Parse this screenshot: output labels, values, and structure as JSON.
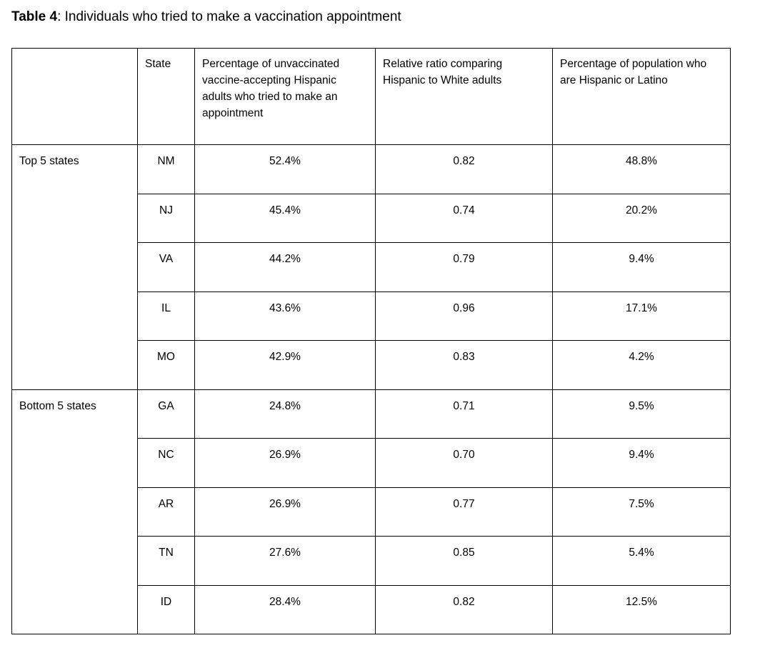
{
  "chart_data": {
    "type": "table",
    "caption": {
      "label": "Table 4",
      "text": ": Individuals who tried to make a vaccination appointment"
    },
    "columns": [
      "",
      "State",
      "Percentage of unvaccinated vaccine-accepting Hispanic adults who tried to make an appointment",
      "Relative ratio comparing Hispanic to White adults",
      "Percentage of population who are Hispanic or Latino"
    ],
    "row_groups": [
      {
        "label": "Top 5 states",
        "rows": [
          [
            "NM",
            "52.4%",
            "0.82",
            "48.8%"
          ],
          [
            "NJ",
            "45.4%",
            "0.74",
            "20.2%"
          ],
          [
            "VA",
            "44.2%",
            "0.79",
            "9.4%"
          ],
          [
            "IL",
            "43.6%",
            "0.96",
            "17.1%"
          ],
          [
            "MO",
            "42.9%",
            "0.83",
            "4.2%"
          ]
        ]
      },
      {
        "label": "Bottom 5 states",
        "rows": [
          [
            "GA",
            "24.8%",
            "0.71",
            "9.5%"
          ],
          [
            "NC",
            "26.9%",
            "0.70",
            "9.4%"
          ],
          [
            "AR",
            "26.9%",
            "0.77",
            "7.5%"
          ],
          [
            "TN",
            "27.6%",
            "0.85",
            "5.4%"
          ],
          [
            "ID",
            "28.4%",
            "0.82",
            "12.5%"
          ]
        ]
      }
    ]
  }
}
